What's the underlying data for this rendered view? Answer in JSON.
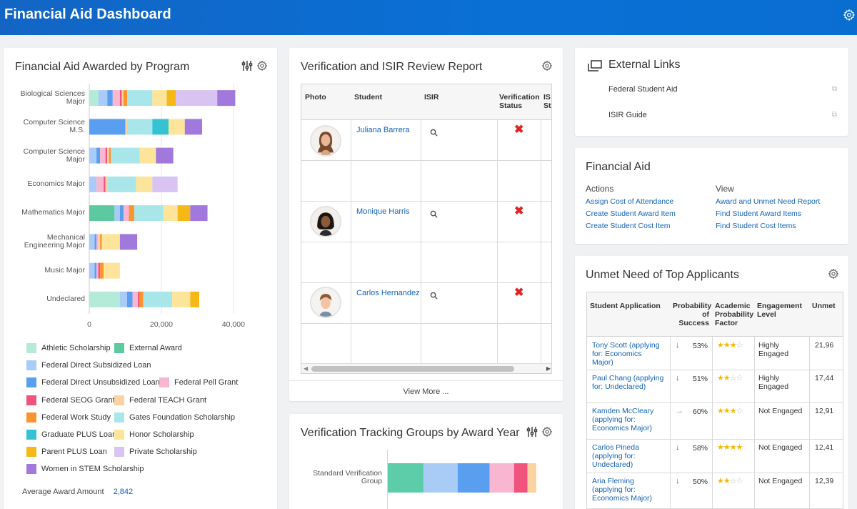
{
  "app": {
    "title": "Financial Aid Dashboard"
  },
  "award_chart": {
    "title": "Financial Aid Awarded by Program",
    "avg_label": "Average Award Amount",
    "avg_value": "2,842"
  },
  "chart_data": {
    "type": "bar",
    "orientation": "horizontal",
    "stacked": true,
    "categories": [
      "Biological Sciences Major",
      "Computer Science M.S.",
      "Computer Science Major",
      "Economics Major",
      "Mathematics Major",
      "Mechanical Engineering Major",
      "Music Major",
      "Undeclared"
    ],
    "x_ticks": [
      "0",
      "20,000",
      "40,000"
    ],
    "xlim": [
      0,
      42000
    ],
    "grid": true,
    "legend_position": "bottom",
    "series": [
      {
        "name": "Athletic Scholarship",
        "color": "#b4ead8",
        "values": [
          2500,
          0,
          0,
          0,
          0,
          0,
          0,
          8500
        ]
      },
      {
        "name": "External Award",
        "color": "#5dc9a0",
        "values": [
          0,
          0,
          0,
          0,
          7000,
          0,
          0,
          0
        ]
      },
      {
        "name": "Federal Direct Subsidized Loan",
        "color": "#a8cbf7",
        "values": [
          2500,
          0,
          2000,
          2000,
          1500,
          1500,
          1500,
          2000
        ]
      },
      {
        "name": "Federal Direct Unsubsidized Loan",
        "color": "#5a9ef0",
        "values": [
          1500,
          10000,
          1000,
          0,
          1000,
          500,
          500,
          1500
        ]
      },
      {
        "name": "Federal Pell Grant",
        "color": "#f9b6d1",
        "values": [
          2000,
          0,
          1500,
          2000,
          1500,
          500,
          500,
          1500
        ]
      },
      {
        "name": "Federal SEOG Grant",
        "color": "#f0537e",
        "values": [
          500,
          0,
          500,
          500,
          0,
          0,
          500,
          500
        ]
      },
      {
        "name": "Federal TEACH Grant",
        "color": "#fbd3a2",
        "values": [
          500,
          500,
          500,
          500,
          0,
          500,
          0,
          0
        ]
      },
      {
        "name": "Federal Work Study",
        "color": "#f8952e",
        "values": [
          1000,
          0,
          500,
          0,
          1500,
          500,
          1000,
          1000
        ]
      },
      {
        "name": "Gates Foundation Scholarship",
        "color": "#a8e6ea",
        "values": [
          7000,
          7000,
          8000,
          8000,
          8000,
          0,
          0,
          8000
        ]
      },
      {
        "name": "Graduate PLUS Loan",
        "color": "#35c3d3",
        "values": [
          0,
          4500,
          0,
          0,
          0,
          0,
          0,
          0
        ]
      },
      {
        "name": "Honor Scholarship",
        "color": "#fde49b",
        "values": [
          4000,
          4500,
          4500,
          4500,
          4000,
          5000,
          4500,
          5000
        ]
      },
      {
        "name": "Parent PLUS Loan",
        "color": "#f5b816",
        "values": [
          2500,
          0,
          0,
          0,
          3500,
          0,
          0,
          2500
        ]
      },
      {
        "name": "Private Scholarship",
        "color": "#d8c3f3",
        "values": [
          11500,
          0,
          0,
          7000,
          0,
          0,
          0,
          0
        ]
      },
      {
        "name": "Women in STEM Scholarship",
        "color": "#a178dc",
        "values": [
          5000,
          4800,
          4800,
          0,
          4800,
          4800,
          0,
          0
        ]
      }
    ]
  },
  "verification": {
    "title": "Verification and ISIR Review Report",
    "headers": {
      "photo": "Photo",
      "student": "Student",
      "isir": "ISIR",
      "status_l1": "Verification",
      "status_l2": "Status",
      "extra_l1": "IS",
      "extra_l2": "St"
    },
    "rows": [
      {
        "student": "Juliana Barrera"
      },
      {
        "student": "Monique Harris"
      },
      {
        "student": "Carlos Hernandez"
      }
    ],
    "view_more": "View More ..."
  },
  "tracking": {
    "title": "Verification Tracking Groups by Award Year",
    "category": "Standard Verification Group",
    "segments": [
      {
        "color": "#5dcca8",
        "value": 4.8
      },
      {
        "color": "#a9ccf7",
        "value": 4.6
      },
      {
        "color": "#5a9ef0",
        "value": 4.3
      },
      {
        "color": "#f9b6d1",
        "value": 3.3
      },
      {
        "color": "#f0537e",
        "value": 1.8
      },
      {
        "color": "#fbd3a2",
        "value": 1.2
      }
    ]
  },
  "external_links": {
    "title": "External Links",
    "items": [
      "Federal Student Aid",
      "ISIR Guide"
    ]
  },
  "financial_aid": {
    "title": "Financial Aid",
    "actions_label": "Actions",
    "view_label": "View",
    "actions": [
      "Assign Cost of Attendance",
      "Create Student Award Item",
      "Create Student Cost Item"
    ],
    "views": [
      "Award and Unmet Need Report",
      "Find Student Award Items",
      "Find Student Cost Items"
    ]
  },
  "unmet": {
    "title": "Unmet Need of Top Applicants",
    "headers": {
      "app": "Student Application",
      "prob_l1": "Probability",
      "prob_l2": "of",
      "prob_l3": "Success",
      "acad_l1": "Academic",
      "acad_l2": "Probability",
      "acad_l3": "Factor",
      "eng_l1": "Engagement",
      "eng_l2": "Level",
      "unmet": "Unmet"
    },
    "rows": [
      {
        "app_l1": "Tony Scott (applying",
        "app_l2": "for: Economics",
        "app_l3": "Major)",
        "arrow": "down",
        "prob": "53%",
        "stars": 3,
        "eng_l1": "Highly",
        "eng_l2": "Engaged",
        "unmet": "21,96"
      },
      {
        "app_l1": "Paul Chang (applying",
        "app_l2": "for: Undeclared)",
        "app_l3": "",
        "arrow": "down",
        "prob": "51%",
        "stars": 2,
        "eng_l1": "Highly",
        "eng_l2": "Engaged",
        "unmet": "17,44"
      },
      {
        "app_l1": "Kamden McCleary",
        "app_l2": "(applying for:",
        "app_l3": "Economics Major)",
        "arrow": "right",
        "prob": "60%",
        "stars": 3,
        "eng_l1": "Not Engaged",
        "eng_l2": "",
        "unmet": "12,91"
      },
      {
        "app_l1": "Carlos Pineda",
        "app_l2": "(applying for:",
        "app_l3": "Undeclared)",
        "arrow": "down",
        "prob": "58%",
        "stars": 4,
        "eng_l1": "Not Engaged",
        "eng_l2": "",
        "unmet": "12,41"
      },
      {
        "app_l1": "Aria Fleming",
        "app_l2": "(applying for:",
        "app_l3": "Economics Major)",
        "arrow": "down",
        "prob": "50%",
        "stars": 2,
        "eng_l1": "Not Engaged",
        "eng_l2": "",
        "unmet": "12,39"
      }
    ]
  }
}
